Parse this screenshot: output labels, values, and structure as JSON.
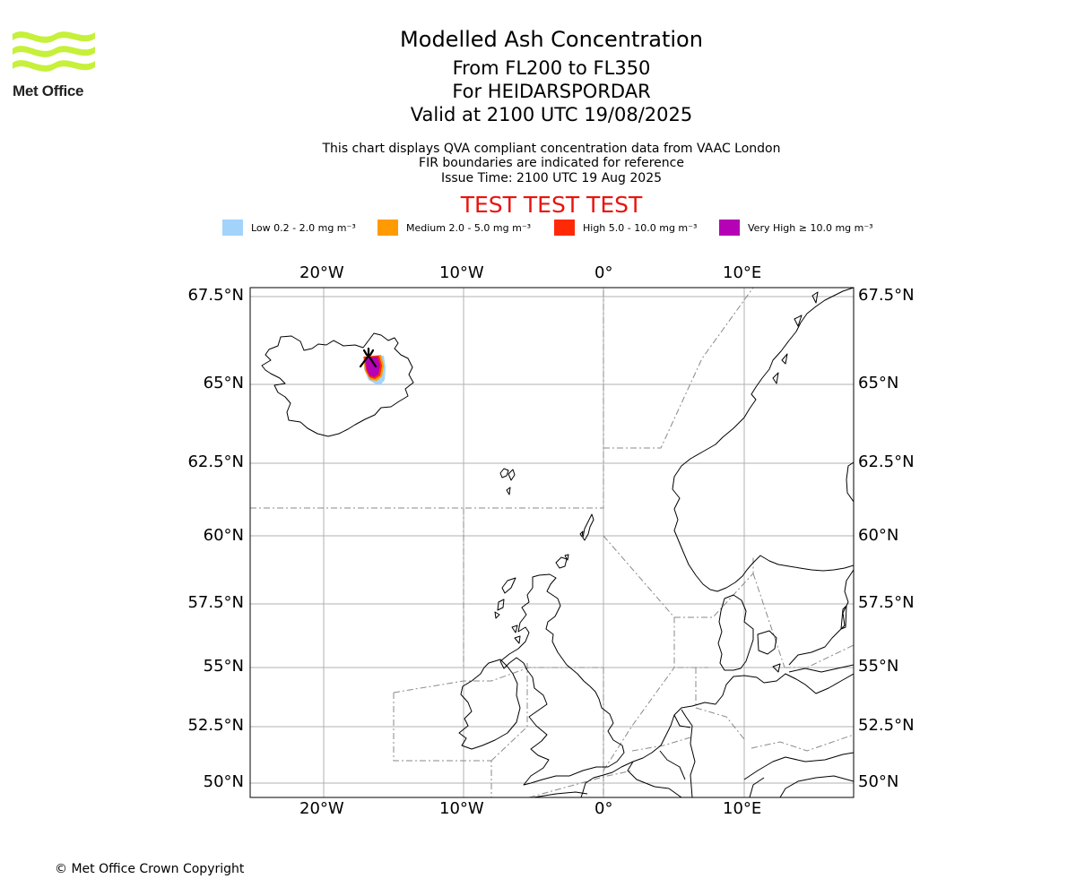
{
  "logo": {
    "text": "Met Office",
    "color": "#c6f03a"
  },
  "titles": {
    "main": "Modelled Ash Concentration",
    "levels": "From FL200 to FL350",
    "volcano": "For HEIDARSPORDAR",
    "valid": "Valid at 2100 UTC 19/08/2025"
  },
  "subtitles": {
    "line1": "This chart displays QVA compliant concentration data from VAAC London",
    "line2": "FIR boundaries are indicated for reference",
    "line3": "Issue Time: 2100 UTC 19 Aug 2025"
  },
  "test_banner": "TEST TEST TEST",
  "legend": [
    {
      "label": "Low 0.2 - 2.0 mg m⁻³",
      "color": "#a2d3fa"
    },
    {
      "label": "Medium 2.0 - 5.0 mg m⁻³",
      "color": "#ff9a03"
    },
    {
      "label": "High 5.0 - 10.0 mg m⁻³",
      "color": "#ff2a05"
    },
    {
      "label": "Very High ≥ 10.0 mg m⁻³",
      "color": "#b402b4"
    }
  ],
  "axes": {
    "lon_labels": [
      "20°W",
      "10°W",
      "0°",
      "10°E"
    ],
    "lat_labels": [
      "67.5°N",
      "65°N",
      "62.5°N",
      "60°N",
      "57.5°N",
      "55°N",
      "52.5°N",
      "50°N"
    ]
  },
  "copyright": "© Met Office Crown Copyright"
}
